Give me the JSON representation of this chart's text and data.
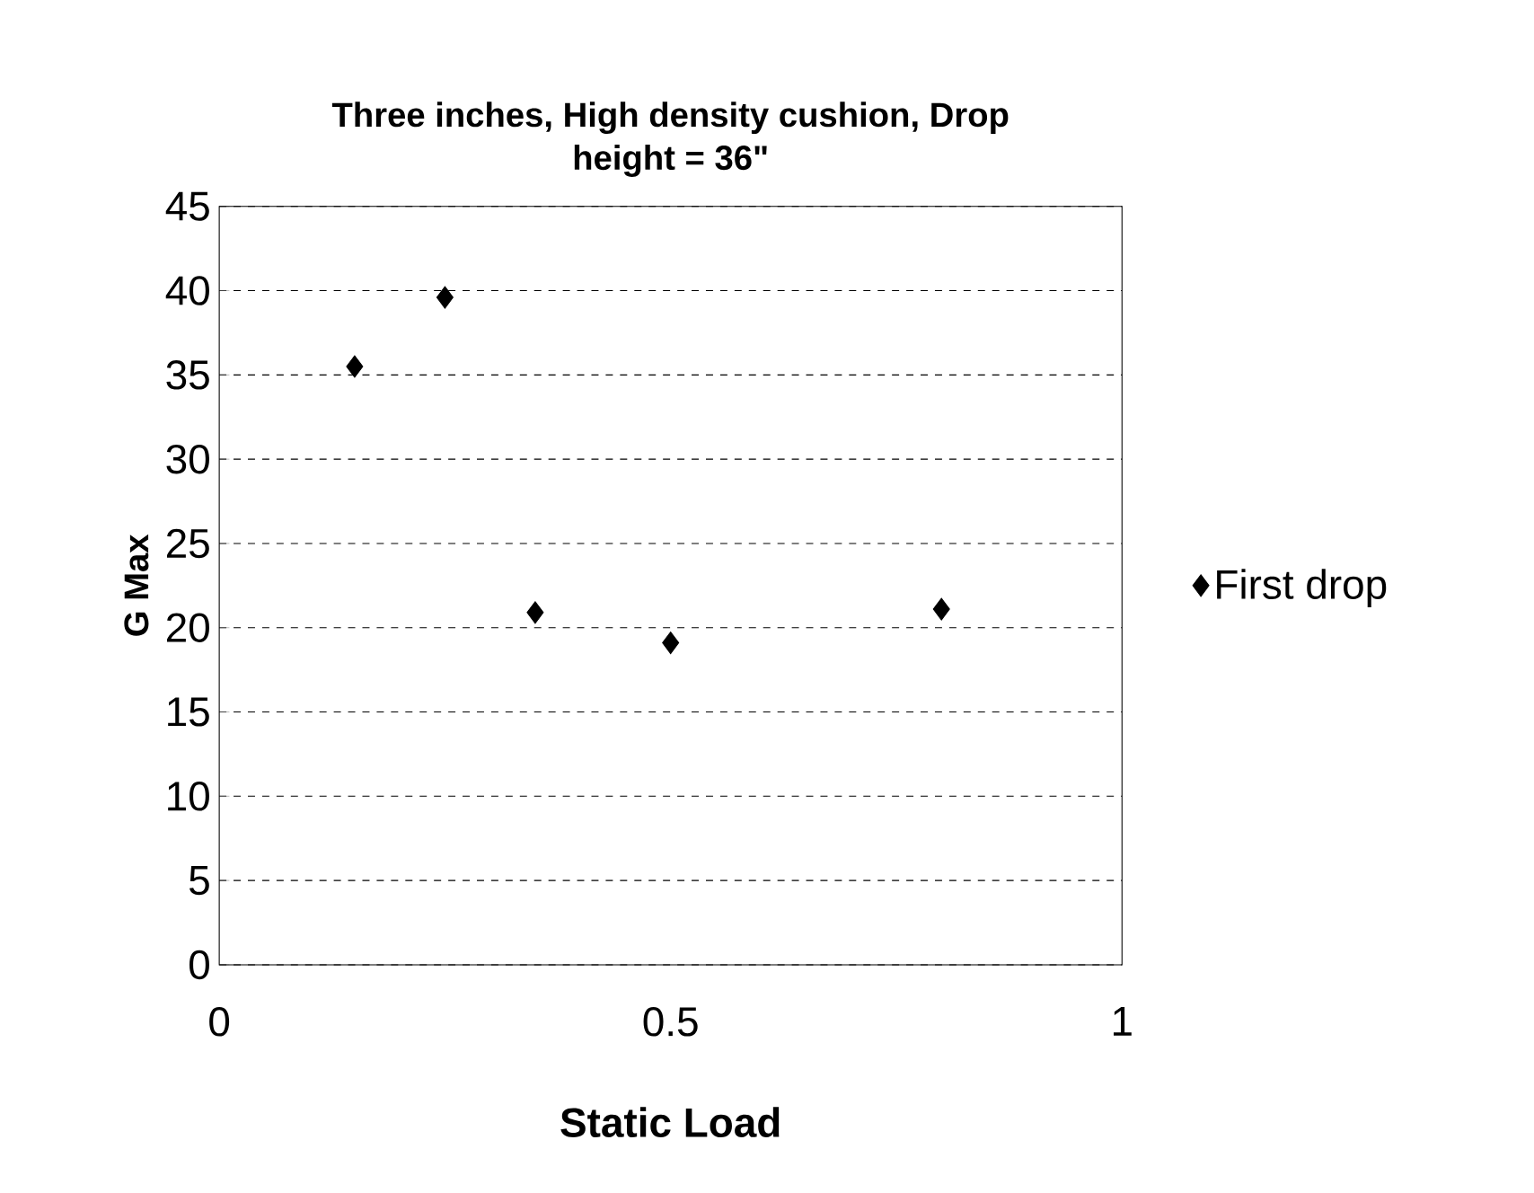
{
  "chart_data": {
    "type": "scatter",
    "title": "Three inches, High density cushion, Drop height = 36\"",
    "xlabel": "Static Load",
    "ylabel": "G Max",
    "series": [
      {
        "name": "First drop",
        "color": "#000000",
        "x": [
          0.15,
          0.25,
          0.35,
          0.5,
          0.8
        ],
        "values": [
          35.5,
          39.6,
          20.9,
          19.1,
          21.1
        ]
      }
    ],
    "xlim": [
      0,
      1
    ],
    "xticks": [
      0,
      0.5,
      1
    ],
    "ylim": [
      0,
      45
    ],
    "yticks": [
      0,
      5,
      10,
      15,
      20,
      25,
      30,
      35,
      40,
      45
    ],
    "grid": "y",
    "legend": "right",
    "marker": "diamond"
  }
}
